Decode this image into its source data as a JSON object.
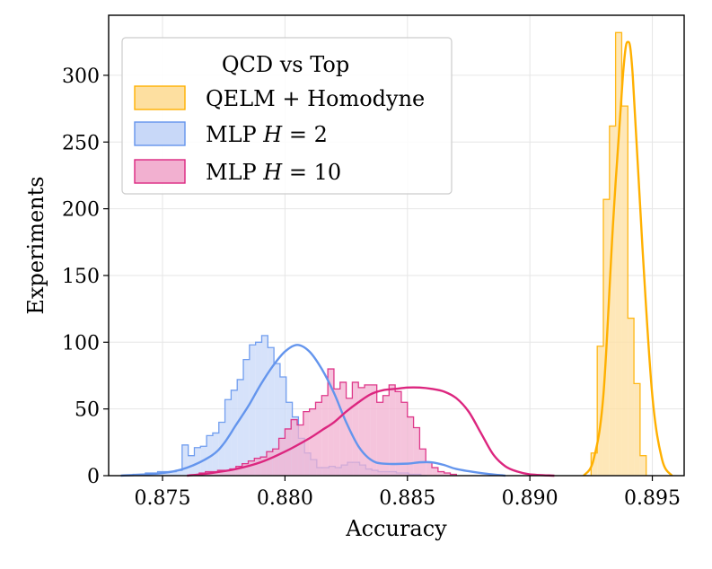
{
  "chart_data": {
    "type": "histogram",
    "title": "",
    "xlabel": "Accuracy",
    "ylabel": "Experiments",
    "xlim": [
      0.8728,
      0.8963
    ],
    "ylim": [
      0,
      345
    ],
    "xticks": [
      0.875,
      0.88,
      0.885,
      0.89,
      0.895
    ],
    "xtick_labels": [
      "0.875",
      "0.880",
      "0.885",
      "0.890",
      "0.895"
    ],
    "yticks": [
      0,
      50,
      100,
      150,
      200,
      250,
      300
    ],
    "ytick_labels": [
      "0",
      "50",
      "100",
      "150",
      "200",
      "250",
      "300"
    ],
    "grid": true,
    "legend": {
      "title": "QCD vs Top",
      "position": "top-left"
    },
    "series": [
      {
        "name": "QELM + Homodyne",
        "legend_label": "QELM + Homodyne",
        "color": "#FFB000",
        "fill": "#FDDFA0",
        "bin_width": 0.00025,
        "bin_start": 0.8925,
        "counts": [
          17,
          97,
          207,
          262,
          332,
          277,
          118,
          69,
          15
        ],
        "kde_x": [
          0.8922,
          0.8926,
          0.893,
          0.8934,
          0.8938,
          0.894,
          0.8942,
          0.8946,
          0.895,
          0.8954,
          0.8958
        ],
        "kde_y": [
          0,
          12,
          60,
          190,
          300,
          325,
          300,
          170,
          60,
          12,
          0
        ]
      },
      {
        "name": "MLP H = 2",
        "legend_label": "MLP ",
        "legend_math_var": "H",
        "legend_math_rest": " = 2",
        "color": "#6495ED",
        "fill": "#C8D8F8",
        "bin_width": 0.00025,
        "bin_start": 0.8733,
        "counts": [
          0,
          0,
          1,
          1,
          2,
          2,
          3,
          3,
          3,
          4,
          23,
          15,
          21,
          22,
          30,
          32,
          40,
          57,
          64,
          72,
          87,
          98,
          100,
          105,
          96,
          84,
          74,
          55,
          44,
          28,
          17,
          12,
          6,
          6,
          7,
          6,
          8,
          10,
          10,
          8,
          5,
          4,
          3,
          3,
          3,
          2,
          2,
          1,
          1,
          0
        ],
        "kde_x": [
          0.8733,
          0.875,
          0.876,
          0.877,
          0.8775,
          0.878,
          0.8785,
          0.879,
          0.8795,
          0.88,
          0.8805,
          0.881,
          0.8815,
          0.882,
          0.8825,
          0.883,
          0.8835,
          0.884,
          0.885,
          0.8855,
          0.886,
          0.8865,
          0.887,
          0.888,
          0.889
        ],
        "kde_y": [
          0,
          2,
          6,
          15,
          24,
          38,
          52,
          68,
          82,
          93,
          98,
          93,
          80,
          62,
          40,
          22,
          12,
          9,
          9,
          10,
          10,
          8,
          5,
          2,
          0
        ]
      },
      {
        "name": "MLP H = 10",
        "legend_label": "MLP ",
        "legend_math_var": "H",
        "legend_math_rest": " = 10",
        "color": "#DC267F",
        "fill": "#F2B0D0",
        "bin_width": 0.00025,
        "bin_start": 0.8765,
        "counts": [
          2,
          3,
          3,
          4,
          4,
          5,
          7,
          9,
          11,
          13,
          14,
          18,
          20,
          28,
          35,
          42,
          38,
          48,
          50,
          55,
          60,
          80,
          65,
          70,
          58,
          70,
          66,
          68,
          68,
          55,
          60,
          68,
          63,
          55,
          44,
          36,
          20,
          10,
          6,
          3,
          2,
          1
        ],
        "kde_x": [
          0.876,
          0.877,
          0.878,
          0.879,
          0.88,
          0.881,
          0.8815,
          0.882,
          0.8825,
          0.883,
          0.8835,
          0.884,
          0.8845,
          0.885,
          0.8855,
          0.886,
          0.8865,
          0.887,
          0.8875,
          0.888,
          0.8885,
          0.889,
          0.8895,
          0.89,
          0.891
        ],
        "kde_y": [
          0,
          2,
          5,
          10,
          18,
          28,
          34,
          40,
          48,
          55,
          61,
          64,
          65,
          66,
          66,
          65,
          63,
          58,
          48,
          32,
          16,
          7,
          3,
          1,
          0
        ]
      }
    ]
  }
}
